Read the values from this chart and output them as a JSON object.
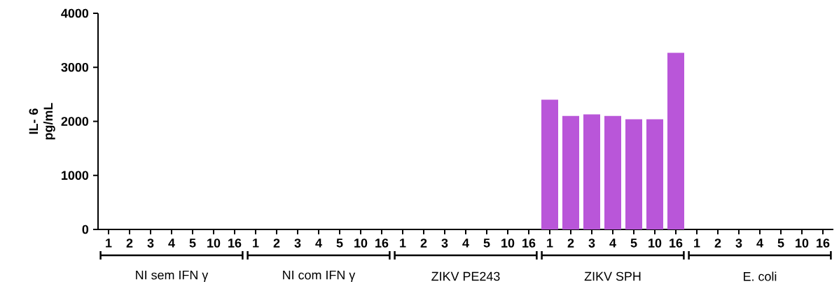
{
  "chart_data": {
    "type": "bar",
    "ylabel": "IL- 6 pg/mL",
    "categories": [
      "1",
      "2",
      "3",
      "4",
      "5",
      "10",
      "16",
      "1",
      "2",
      "3",
      "4",
      "5",
      "10",
      "16",
      "1",
      "2",
      "3",
      "4",
      "5",
      "10",
      "16",
      "1",
      "2",
      "3",
      "4",
      "5",
      "10",
      "16",
      "1",
      "2",
      "3",
      "4",
      "5",
      "10",
      "16"
    ],
    "values": [
      0,
      0,
      0,
      0,
      0,
      0,
      0,
      0,
      0,
      0,
      0,
      0,
      0,
      0,
      0,
      0,
      0,
      0,
      0,
      0,
      0,
      2400,
      2100,
      2130,
      2100,
      2040,
      2040,
      3270,
      0,
      0,
      0,
      0,
      0,
      0,
      0
    ],
    "color": "#b956d9",
    "ylim": [
      0,
      4000
    ],
    "yticks": [
      0,
      1000,
      2000,
      3000,
      4000
    ],
    "grid": false,
    "annotations": [
      "NI sem IFN γ",
      "NI com IFN γ",
      "ZIKV PE243",
      "ZIKV SPH",
      "E. coli"
    ]
  }
}
